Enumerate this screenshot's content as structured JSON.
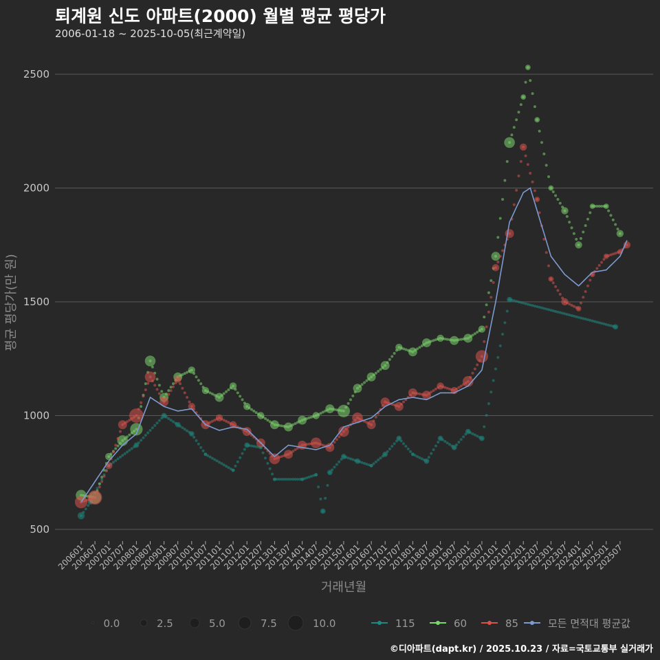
{
  "title": "퇴계원 신도 아파트(2000) 월별 평균 평당가",
  "subtitle": "2006-01-18 ~ 2025-10-05(최근계약일)",
  "footer": "©디아파트(dapt.kr) / 2025.10.23 / 자료=국토교통부 실거래가",
  "chart_data": {
    "type": "scatter",
    "xlabel": "거래년월",
    "ylabel": "평균 평당가(만 원)",
    "ylim": [
      500,
      2500
    ],
    "yticks": [
      500,
      1000,
      1500,
      2000,
      2500
    ],
    "grid": true,
    "legend_placement": "bottom",
    "x_start": "200601",
    "xticks": [
      "200601",
      "200607",
      "200701",
      "200707",
      "200801",
      "200807",
      "200901",
      "200907",
      "201001",
      "201007",
      "201101",
      "201107",
      "201201",
      "201207",
      "201301",
      "201307",
      "201401",
      "201407",
      "201501",
      "201507",
      "201601",
      "201607",
      "201701",
      "201707",
      "201801",
      "201807",
      "201901",
      "201907",
      "202001",
      "202007",
      "202101",
      "202107",
      "202201",
      "202207",
      "202301",
      "202307",
      "202401",
      "202407",
      "202501",
      "202507"
    ],
    "size_legend": {
      "values": [
        "0.0",
        "2.5",
        "5.0",
        "7.5",
        "10.0"
      ]
    },
    "series": [
      {
        "name": "115",
        "color": "#1f8a82",
        "months": [
          0,
          4,
          12,
          24,
          36,
          42,
          48,
          54,
          66,
          72,
          78,
          84,
          96,
          102,
          105,
          108,
          114,
          120,
          126,
          132,
          138,
          144,
          150,
          156,
          162,
          168,
          174,
          186,
          232
        ],
        "values": [
          560,
          620,
          780,
          870,
          1000,
          960,
          920,
          830,
          760,
          870,
          860,
          720,
          720,
          740,
          580,
          750,
          820,
          800,
          780,
          830,
          900,
          830,
          800,
          900,
          860,
          930,
          900,
          1510,
          1390
        ],
        "sizes": [
          4,
          3,
          2,
          3,
          3,
          3,
          3,
          2,
          2,
          3,
          2,
          2,
          2,
          2,
          3,
          3,
          3,
          3,
          2,
          3,
          3,
          2,
          3,
          3,
          3,
          3,
          3,
          3,
          3
        ]
      },
      {
        "name": "60",
        "color": "#7ed66f",
        "months": [
          0,
          6,
          12,
          18,
          24,
          30,
          36,
          42,
          48,
          54,
          60,
          66,
          72,
          78,
          84,
          90,
          96,
          102,
          108,
          114,
          120,
          126,
          132,
          138,
          144,
          150,
          156,
          162,
          168,
          174,
          180,
          186,
          192,
          194,
          198,
          204,
          210,
          216,
          222,
          228,
          234
        ],
        "values": [
          650,
          640,
          820,
          890,
          940,
          1240,
          1080,
          1170,
          1200,
          1110,
          1080,
          1130,
          1040,
          1000,
          960,
          950,
          980,
          1000,
          1030,
          1020,
          1120,
          1170,
          1220,
          1300,
          1280,
          1320,
          1340,
          1330,
          1340,
          1380,
          1700,
          2200,
          2400,
          2530,
          2300,
          2000,
          1900,
          1750,
          1920,
          1920,
          1800
        ],
        "sizes": [
          6,
          7,
          4,
          6,
          7,
          6,
          5,
          5,
          4,
          4,
          5,
          4,
          4,
          4,
          5,
          5,
          5,
          4,
          5,
          7,
          5,
          5,
          5,
          4,
          5,
          5,
          4,
          5,
          5,
          4,
          5,
          6,
          3,
          3,
          3,
          3,
          4,
          4,
          3,
          3,
          4
        ],
        "sizes_max": 10
      },
      {
        "name": "85",
        "color": "#d9534f",
        "months": [
          0,
          6,
          12,
          18,
          24,
          30,
          36,
          42,
          48,
          54,
          60,
          66,
          72,
          78,
          84,
          90,
          96,
          102,
          108,
          114,
          120,
          126,
          132,
          138,
          144,
          150,
          156,
          162,
          168,
          174,
          180,
          186,
          192,
          198,
          204,
          210,
          216,
          222,
          228,
          234,
          237
        ],
        "values": [
          620,
          640,
          780,
          960,
          1000,
          1170,
          1060,
          1160,
          1040,
          960,
          990,
          960,
          930,
          880,
          810,
          830,
          870,
          880,
          860,
          930,
          990,
          960,
          1060,
          1040,
          1100,
          1090,
          1130,
          1110,
          1150,
          1260,
          1650,
          1800,
          2180,
          1950,
          1600,
          1500,
          1470,
          1620,
          1700,
          1720,
          1750
        ],
        "sizes": [
          7,
          8,
          4,
          5,
          8,
          6,
          5,
          4,
          4,
          5,
          4,
          4,
          5,
          5,
          6,
          5,
          5,
          6,
          5,
          6,
          6,
          5,
          5,
          5,
          5,
          5,
          4,
          4,
          6,
          7,
          4,
          5,
          4,
          3,
          3,
          4,
          3,
          3,
          3,
          3,
          4
        ]
      },
      {
        "name": "모든 면적대 평균값",
        "color": "#7d9bd1",
        "months": [
          0,
          12,
          18,
          24,
          30,
          36,
          42,
          48,
          54,
          60,
          66,
          72,
          78,
          84,
          90,
          96,
          102,
          108,
          114,
          120,
          126,
          132,
          138,
          144,
          150,
          156,
          162,
          168,
          174,
          180,
          186,
          192,
          195,
          198,
          204,
          210,
          216,
          222,
          228,
          234,
          237
        ],
        "values": [
          620,
          800,
          870,
          920,
          1080,
          1040,
          1020,
          1030,
          960,
          935,
          950,
          940,
          880,
          820,
          870,
          860,
          850,
          870,
          950,
          970,
          990,
          1040,
          1070,
          1080,
          1070,
          1100,
          1100,
          1130,
          1200,
          1500,
          1850,
          1980,
          2000,
          1900,
          1700,
          1620,
          1570,
          1630,
          1640,
          1700,
          1770
        ]
      }
    ]
  }
}
